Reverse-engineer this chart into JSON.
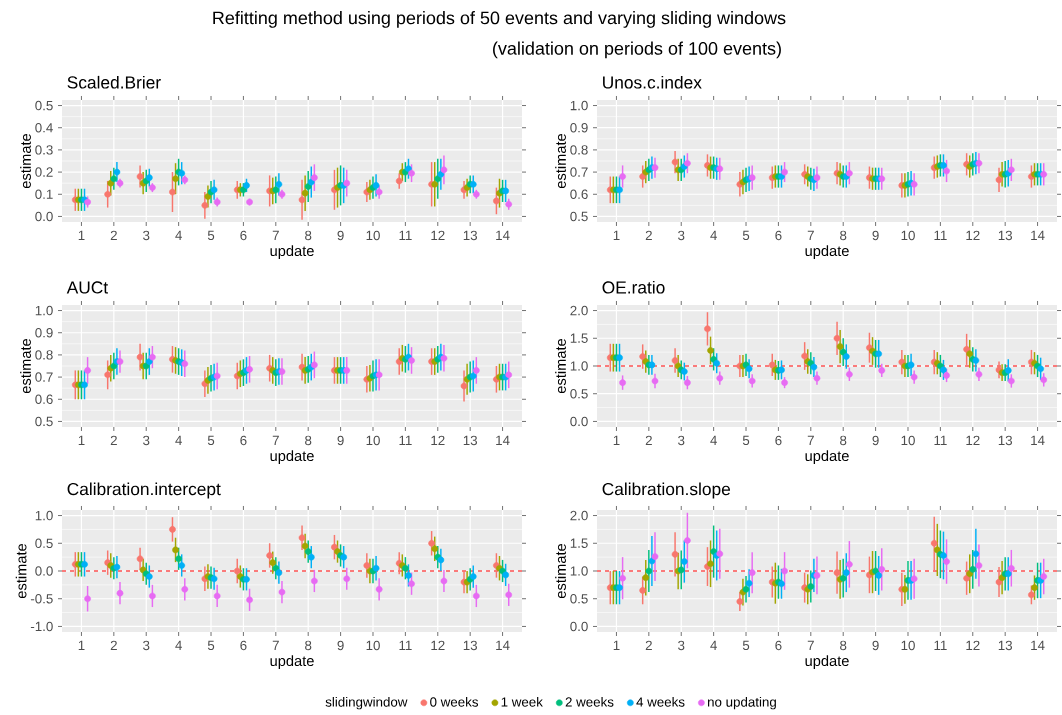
{
  "chart_data": [
    {
      "type": "scatter",
      "title": "Scaled.Brier",
      "xlabel": "update",
      "ylabel": "estimate",
      "annotations": [
        "Refitting method using periods of 50 events and varying sliding windows",
        "(validation on periods of 100 events)"
      ],
      "categories": [
        "1",
        "2",
        "3",
        "4",
        "5",
        "6",
        "7",
        "8",
        "9",
        "10",
        "11",
        "12",
        "13",
        "14"
      ],
      "ylim": [
        -0.025,
        0.525
      ],
      "yticks": [
        {
          "value": 0,
          "label": "0.0"
        },
        0.1,
        0.2,
        0.3,
        0.4,
        0.5
      ],
      "grid": true,
      "marker": "circle",
      "series": [
        {
          "color": "#f8766d",
          "values": [
            0.075,
            0.1,
            0.18,
            0.11,
            0.05,
            0.12,
            0.115,
            0.075,
            0.12,
            0.11,
            0.16,
            0.145,
            0.12,
            0.07
          ],
          "errors": [
            0.05,
            0.06,
            0.05,
            0.09,
            0.06,
            0.04,
            0.07,
            0.09,
            0.09,
            0.045,
            0.035,
            0.1,
            0.04,
            0.06
          ]
        },
        {
          "color": "#a3a500",
          "values": [
            0.075,
            0.15,
            0.15,
            0.17,
            0.09,
            0.12,
            0.115,
            0.105,
            0.13,
            0.12,
            0.2,
            0.145,
            0.13,
            0.105
          ],
          "errors": [
            0.05,
            0.055,
            0.05,
            0.07,
            0.05,
            0.03,
            0.06,
            0.08,
            0.09,
            0.045,
            0.04,
            0.1,
            0.04,
            0.065
          ]
        },
        {
          "color": "#00bf7d",
          "values": [
            0.075,
            0.17,
            0.16,
            0.2,
            0.11,
            0.12,
            0.12,
            0.135,
            0.14,
            0.13,
            0.2,
            0.17,
            0.145,
            0.115
          ],
          "errors": [
            0.05,
            0.05,
            0.05,
            0.06,
            0.05,
            0.03,
            0.06,
            0.07,
            0.09,
            0.05,
            0.045,
            0.09,
            0.04,
            0.05
          ]
        },
        {
          "color": "#00b0f6",
          "values": [
            0.075,
            0.2,
            0.175,
            0.195,
            0.12,
            0.14,
            0.145,
            0.155,
            0.14,
            0.14,
            0.215,
            0.19,
            0.145,
            0.115
          ],
          "errors": [
            0.05,
            0.045,
            0.04,
            0.05,
            0.045,
            0.03,
            0.05,
            0.07,
            0.08,
            0.05,
            0.045,
            0.07,
            0.04,
            0.05
          ]
        },
        {
          "color": "#e76bf3",
          "values": [
            0.065,
            0.15,
            0.13,
            0.165,
            0.065,
            0.065,
            0.1,
            0.175,
            0.15,
            0.11,
            0.195,
            0.21,
            0.1,
            0.055
          ],
          "errors": [
            0.025,
            0.02,
            0.02,
            0.02,
            0.02,
            0.015,
            0.02,
            0.06,
            0.06,
            0.03,
            0.04,
            0.065,
            0.02,
            0.025
          ]
        }
      ]
    },
    {
      "type": "scatter",
      "title": "Unos.c.index",
      "xlabel": "update",
      "ylabel": "estimate",
      "categories": [
        "1",
        "2",
        "3",
        "4",
        "5",
        "6",
        "7",
        "8",
        "9",
        "10",
        "11",
        "12",
        "13",
        "14"
      ],
      "ylim": [
        0.475,
        1.025
      ],
      "yticks": [
        0.5,
        0.6,
        0.7,
        0.8,
        0.9,
        {
          "value": 1,
          "label": "1.0"
        }
      ],
      "grid": true,
      "marker": "circle",
      "series": [
        {
          "color": "#f8766d",
          "values": [
            0.62,
            0.68,
            0.745,
            0.73,
            0.645,
            0.675,
            0.69,
            0.695,
            0.675,
            0.64,
            0.72,
            0.735,
            0.665,
            0.68
          ],
          "errors": [
            0.06,
            0.05,
            0.05,
            0.05,
            0.055,
            0.05,
            0.045,
            0.05,
            0.05,
            0.055,
            0.05,
            0.05,
            0.055,
            0.05
          ]
        },
        {
          "color": "#a3a500",
          "values": [
            0.62,
            0.7,
            0.71,
            0.72,
            0.655,
            0.68,
            0.68,
            0.69,
            0.67,
            0.64,
            0.725,
            0.725,
            0.69,
            0.69
          ],
          "errors": [
            0.06,
            0.05,
            0.05,
            0.05,
            0.055,
            0.05,
            0.045,
            0.05,
            0.05,
            0.055,
            0.05,
            0.05,
            0.055,
            0.05
          ]
        },
        {
          "color": "#00bf7d",
          "values": [
            0.62,
            0.71,
            0.71,
            0.72,
            0.665,
            0.68,
            0.67,
            0.68,
            0.67,
            0.645,
            0.73,
            0.735,
            0.69,
            0.69
          ],
          "errors": [
            0.06,
            0.05,
            0.05,
            0.05,
            0.055,
            0.05,
            0.05,
            0.05,
            0.05,
            0.055,
            0.05,
            0.05,
            0.06,
            0.05
          ]
        },
        {
          "color": "#00b0f6",
          "values": [
            0.62,
            0.72,
            0.725,
            0.715,
            0.67,
            0.68,
            0.665,
            0.68,
            0.67,
            0.65,
            0.73,
            0.74,
            0.695,
            0.69
          ],
          "errors": [
            0.06,
            0.05,
            0.05,
            0.05,
            0.055,
            0.05,
            0.05,
            0.05,
            0.05,
            0.055,
            0.05,
            0.05,
            0.06,
            0.05
          ]
        },
        {
          "color": "#e76bf3",
          "values": [
            0.68,
            0.72,
            0.74,
            0.715,
            0.675,
            0.7,
            0.675,
            0.695,
            0.67,
            0.645,
            0.705,
            0.74,
            0.71,
            0.69
          ],
          "errors": [
            0.05,
            0.045,
            0.045,
            0.05,
            0.055,
            0.045,
            0.05,
            0.05,
            0.05,
            0.05,
            0.05,
            0.045,
            0.05,
            0.05
          ]
        }
      ]
    },
    {
      "type": "scatter",
      "title": "AUCt",
      "xlabel": "update",
      "ylabel": "estimate",
      "categories": [
        "1",
        "2",
        "3",
        "4",
        "5",
        "6",
        "7",
        "8",
        "9",
        "10",
        "11",
        "12",
        "13",
        "14"
      ],
      "ylim": [
        0.475,
        1.025
      ],
      "yticks": [
        0.5,
        0.6,
        0.7,
        0.8,
        0.9,
        {
          "value": 1,
          "label": "1.0"
        }
      ],
      "grid": true,
      "marker": "circle",
      "series": [
        {
          "color": "#f8766d",
          "values": [
            0.665,
            0.71,
            0.79,
            0.78,
            0.67,
            0.705,
            0.74,
            0.745,
            0.73,
            0.69,
            0.77,
            0.77,
            0.66,
            0.69
          ],
          "errors": [
            0.065,
            0.065,
            0.06,
            0.06,
            0.06,
            0.06,
            0.06,
            0.06,
            0.06,
            0.06,
            0.06,
            0.06,
            0.07,
            0.06
          ]
        },
        {
          "color": "#a3a500",
          "values": [
            0.665,
            0.74,
            0.75,
            0.775,
            0.685,
            0.715,
            0.73,
            0.73,
            0.73,
            0.695,
            0.785,
            0.77,
            0.69,
            0.7
          ],
          "errors": [
            0.065,
            0.06,
            0.06,
            0.06,
            0.06,
            0.06,
            0.06,
            0.06,
            0.06,
            0.06,
            0.06,
            0.06,
            0.07,
            0.06
          ]
        },
        {
          "color": "#00bf7d",
          "values": [
            0.665,
            0.75,
            0.75,
            0.77,
            0.695,
            0.72,
            0.72,
            0.735,
            0.73,
            0.705,
            0.78,
            0.78,
            0.7,
            0.7
          ],
          "errors": [
            0.065,
            0.06,
            0.06,
            0.06,
            0.06,
            0.06,
            0.06,
            0.06,
            0.06,
            0.07,
            0.06,
            0.06,
            0.07,
            0.06
          ]
        },
        {
          "color": "#00b0f6",
          "values": [
            0.665,
            0.77,
            0.77,
            0.765,
            0.7,
            0.73,
            0.725,
            0.745,
            0.73,
            0.71,
            0.79,
            0.79,
            0.705,
            0.7
          ],
          "errors": [
            0.065,
            0.06,
            0.06,
            0.06,
            0.06,
            0.06,
            0.06,
            0.06,
            0.06,
            0.07,
            0.06,
            0.06,
            0.07,
            0.06
          ]
        },
        {
          "color": "#e76bf3",
          "values": [
            0.73,
            0.77,
            0.79,
            0.76,
            0.705,
            0.735,
            0.725,
            0.755,
            0.73,
            0.71,
            0.775,
            0.785,
            0.73,
            0.71
          ],
          "errors": [
            0.06,
            0.05,
            0.05,
            0.06,
            0.06,
            0.06,
            0.06,
            0.06,
            0.06,
            0.07,
            0.06,
            0.06,
            0.06,
            0.06
          ]
        }
      ]
    },
    {
      "type": "scatter",
      "title": "OE.ratio",
      "xlabel": "update",
      "ylabel": "estimate",
      "categories": [
        "1",
        "2",
        "3",
        "4",
        "5",
        "6",
        "7",
        "8",
        "9",
        "10",
        "11",
        "12",
        "13",
        "14"
      ],
      "ylim": [
        -0.1,
        2.1
      ],
      "yticks": [
        {
          "value": 0,
          "label": "0.0"
        },
        0.5,
        {
          "value": 1,
          "label": "1.0"
        },
        1.5,
        {
          "value": 2,
          "label": "2.0"
        }
      ],
      "grid": true,
      "marker": "circle",
      "ref_lines": [
        {
          "axis": "y",
          "value": 1,
          "color": "#ff0000",
          "line_style": "dashed"
        }
      ],
      "series": [
        {
          "color": "#f8766d",
          "values": [
            1.15,
            1.17,
            1.1,
            1.67,
            1.0,
            1.02,
            1.18,
            1.5,
            1.33,
            1.07,
            1.07,
            1.3,
            0.93,
            1.07
          ],
          "errors": [
            0.25,
            0.22,
            0.22,
            0.3,
            0.2,
            0.2,
            0.25,
            0.3,
            0.27,
            0.22,
            0.22,
            0.28,
            0.15,
            0.22
          ]
        },
        {
          "color": "#a3a500",
          "values": [
            1.15,
            1.08,
            1.0,
            1.28,
            1.0,
            0.93,
            1.08,
            1.35,
            1.27,
            1.0,
            1.05,
            1.22,
            0.88,
            1.05
          ],
          "errors": [
            0.25,
            0.2,
            0.2,
            0.25,
            0.2,
            0.18,
            0.22,
            0.3,
            0.25,
            0.2,
            0.2,
            0.25,
            0.15,
            0.2
          ]
        },
        {
          "color": "#00bf7d",
          "values": [
            1.15,
            1.02,
            0.93,
            1.12,
            1.02,
            0.92,
            1.05,
            1.25,
            1.22,
            1.0,
            1.0,
            1.12,
            0.88,
            1.0
          ],
          "errors": [
            0.25,
            0.18,
            0.17,
            0.2,
            0.2,
            0.17,
            0.2,
            0.25,
            0.25,
            0.2,
            0.2,
            0.22,
            0.15,
            0.2
          ]
        },
        {
          "color": "#00b0f6",
          "values": [
            1.15,
            1.02,
            0.9,
            1.05,
            0.95,
            0.93,
            0.98,
            1.17,
            1.22,
            1.02,
            0.93,
            1.1,
            0.92,
            0.95
          ],
          "errors": [
            0.25,
            0.18,
            0.16,
            0.18,
            0.17,
            0.17,
            0.18,
            0.22,
            0.25,
            0.2,
            0.18,
            0.2,
            0.2,
            0.2
          ]
        },
        {
          "color": "#e76bf3",
          "values": [
            0.7,
            0.73,
            0.7,
            0.78,
            0.73,
            0.7,
            0.78,
            0.85,
            0.92,
            0.8,
            0.83,
            0.85,
            0.73,
            0.75
          ],
          "errors": [
            0.13,
            0.13,
            0.12,
            0.12,
            0.12,
            0.1,
            0.12,
            0.12,
            0.12,
            0.12,
            0.12,
            0.12,
            0.12,
            0.12
          ]
        }
      ]
    },
    {
      "type": "scatter",
      "title": "Calibration.intercept",
      "xlabel": "update",
      "ylabel": "estimate",
      "categories": [
        "1",
        "2",
        "3",
        "4",
        "5",
        "6",
        "7",
        "8",
        "9",
        "10",
        "11",
        "12",
        "13",
        "14"
      ],
      "ylim": [
        -1.1,
        1.1
      ],
      "yticks": [
        {
          "value": -1,
          "label": "-1.0"
        },
        -0.5,
        {
          "value": 0,
          "label": "0.0"
        },
        0.5,
        {
          "value": 1,
          "label": "1.0"
        }
      ],
      "grid": true,
      "marker": "circle",
      "ref_lines": [
        {
          "axis": "y",
          "value": 0,
          "color": "#ff0000",
          "line_style": "dashed"
        }
      ],
      "series": [
        {
          "color": "#f8766d",
          "values": [
            0.12,
            0.15,
            0.22,
            0.75,
            -0.14,
            0.0,
            0.28,
            0.6,
            0.43,
            0.1,
            0.14,
            0.5,
            -0.2,
            0.1
          ],
          "errors": [
            0.22,
            0.22,
            0.2,
            0.22,
            0.22,
            0.22,
            0.22,
            0.22,
            0.22,
            0.22,
            0.2,
            0.22,
            0.2,
            0.22
          ]
        },
        {
          "color": "#a3a500",
          "values": [
            0.12,
            0.1,
            0.02,
            0.38,
            -0.1,
            -0.1,
            0.15,
            0.45,
            0.35,
            0.0,
            0.1,
            0.4,
            -0.2,
            0.05
          ],
          "errors": [
            0.22,
            0.22,
            0.2,
            0.22,
            0.22,
            0.2,
            0.2,
            0.22,
            0.2,
            0.22,
            0.2,
            0.22,
            0.2,
            0.22
          ]
        },
        {
          "color": "#00bf7d",
          "values": [
            0.12,
            0.05,
            -0.05,
            0.22,
            -0.12,
            -0.15,
            0.05,
            0.35,
            0.28,
            0.0,
            0.05,
            0.25,
            -0.15,
            0.0
          ],
          "errors": [
            0.22,
            0.2,
            0.2,
            0.2,
            0.2,
            0.2,
            0.2,
            0.2,
            0.2,
            0.22,
            0.2,
            0.2,
            0.2,
            0.2
          ]
        },
        {
          "color": "#00b0f6",
          "values": [
            0.12,
            0.07,
            -0.1,
            0.1,
            -0.14,
            -0.15,
            -0.03,
            0.25,
            0.25,
            0.05,
            -0.08,
            0.2,
            -0.1,
            -0.07
          ],
          "errors": [
            0.22,
            0.2,
            0.2,
            0.2,
            0.2,
            0.2,
            0.2,
            0.2,
            0.2,
            0.22,
            0.2,
            0.2,
            0.2,
            0.2
          ]
        },
        {
          "color": "#e76bf3",
          "values": [
            -0.5,
            -0.4,
            -0.45,
            -0.33,
            -0.45,
            -0.52,
            -0.38,
            -0.18,
            -0.14,
            -0.33,
            -0.23,
            -0.18,
            -0.45,
            -0.43
          ],
          "errors": [
            0.23,
            0.2,
            0.2,
            0.2,
            0.2,
            0.2,
            0.2,
            0.2,
            0.2,
            0.2,
            0.2,
            0.2,
            0.2,
            0.2
          ]
        }
      ]
    },
    {
      "type": "scatter",
      "title": "Calibration.slope",
      "xlabel": "update",
      "ylabel": "estimate",
      "legend": "bottom",
      "legend_title": "slidingwindow",
      "categories": [
        "1",
        "2",
        "3",
        "4",
        "5",
        "6",
        "7",
        "8",
        "9",
        "10",
        "11",
        "12",
        "13",
        "14"
      ],
      "ylim": [
        -0.1,
        2.1
      ],
      "yticks": [
        {
          "value": 0,
          "label": "0.0"
        },
        0.5,
        {
          "value": 1,
          "label": "1.0"
        },
        1.5,
        {
          "value": 2,
          "label": "2.0"
        }
      ],
      "grid": true,
      "marker": "circle",
      "ref_lines": [
        {
          "axis": "y",
          "value": 1,
          "color": "#ff0000",
          "line_style": "dashed"
        }
      ],
      "series": [
        {
          "name": "0 weeks",
          "color": "#f8766d",
          "values": [
            0.7,
            0.65,
            1.3,
            1.08,
            0.45,
            0.8,
            0.7,
            0.97,
            0.93,
            0.67,
            1.5,
            0.87,
            0.8,
            0.57
          ],
          "errors": [
            0.3,
            0.25,
            0.4,
            0.35,
            0.17,
            0.28,
            0.27,
            0.38,
            0.33,
            0.3,
            0.48,
            0.3,
            0.27,
            0.17
          ]
        },
        {
          "name": "1 week",
          "color": "#a3a500",
          "values": [
            0.7,
            0.88,
            1.0,
            1.13,
            0.62,
            0.78,
            0.67,
            0.85,
            0.98,
            0.67,
            1.38,
            0.95,
            0.88,
            0.7
          ],
          "errors": [
            0.3,
            0.32,
            0.33,
            0.42,
            0.24,
            0.37,
            0.27,
            0.35,
            0.38,
            0.26,
            0.47,
            0.35,
            0.3,
            0.22
          ]
        },
        {
          "name": "2 weeks",
          "color": "#00bf7d",
          "values": [
            0.7,
            1.0,
            1.02,
            1.35,
            0.67,
            0.8,
            0.72,
            0.87,
            1.0,
            0.83,
            1.3,
            1.03,
            0.95,
            0.83
          ],
          "errors": [
            0.3,
            0.38,
            0.35,
            0.47,
            0.24,
            0.3,
            0.29,
            0.35,
            0.36,
            0.35,
            0.43,
            0.35,
            0.3,
            0.32
          ]
        },
        {
          "name": "4 weeks",
          "color": "#00b0f6",
          "values": [
            0.7,
            1.18,
            1.17,
            1.28,
            0.78,
            0.77,
            0.92,
            0.97,
            0.92,
            0.83,
            1.28,
            1.31,
            0.95,
            0.83
          ],
          "errors": [
            0.3,
            0.45,
            0.38,
            0.45,
            0.25,
            0.27,
            0.3,
            0.35,
            0.35,
            0.35,
            0.43,
            0.45,
            0.3,
            0.32
          ]
        },
        {
          "name": "no updating",
          "color": "#e76bf3",
          "values": [
            0.87,
            1.26,
            1.55,
            1.31,
            0.97,
            1.0,
            0.92,
            1.12,
            1.03,
            0.86,
            1.17,
            1.1,
            1.05,
            0.9
          ],
          "errors": [
            0.38,
            0.44,
            0.5,
            0.45,
            0.37,
            0.34,
            0.34,
            0.42,
            0.38,
            0.36,
            0.4,
            0.38,
            0.33,
            0.32
          ]
        }
      ]
    }
  ]
}
